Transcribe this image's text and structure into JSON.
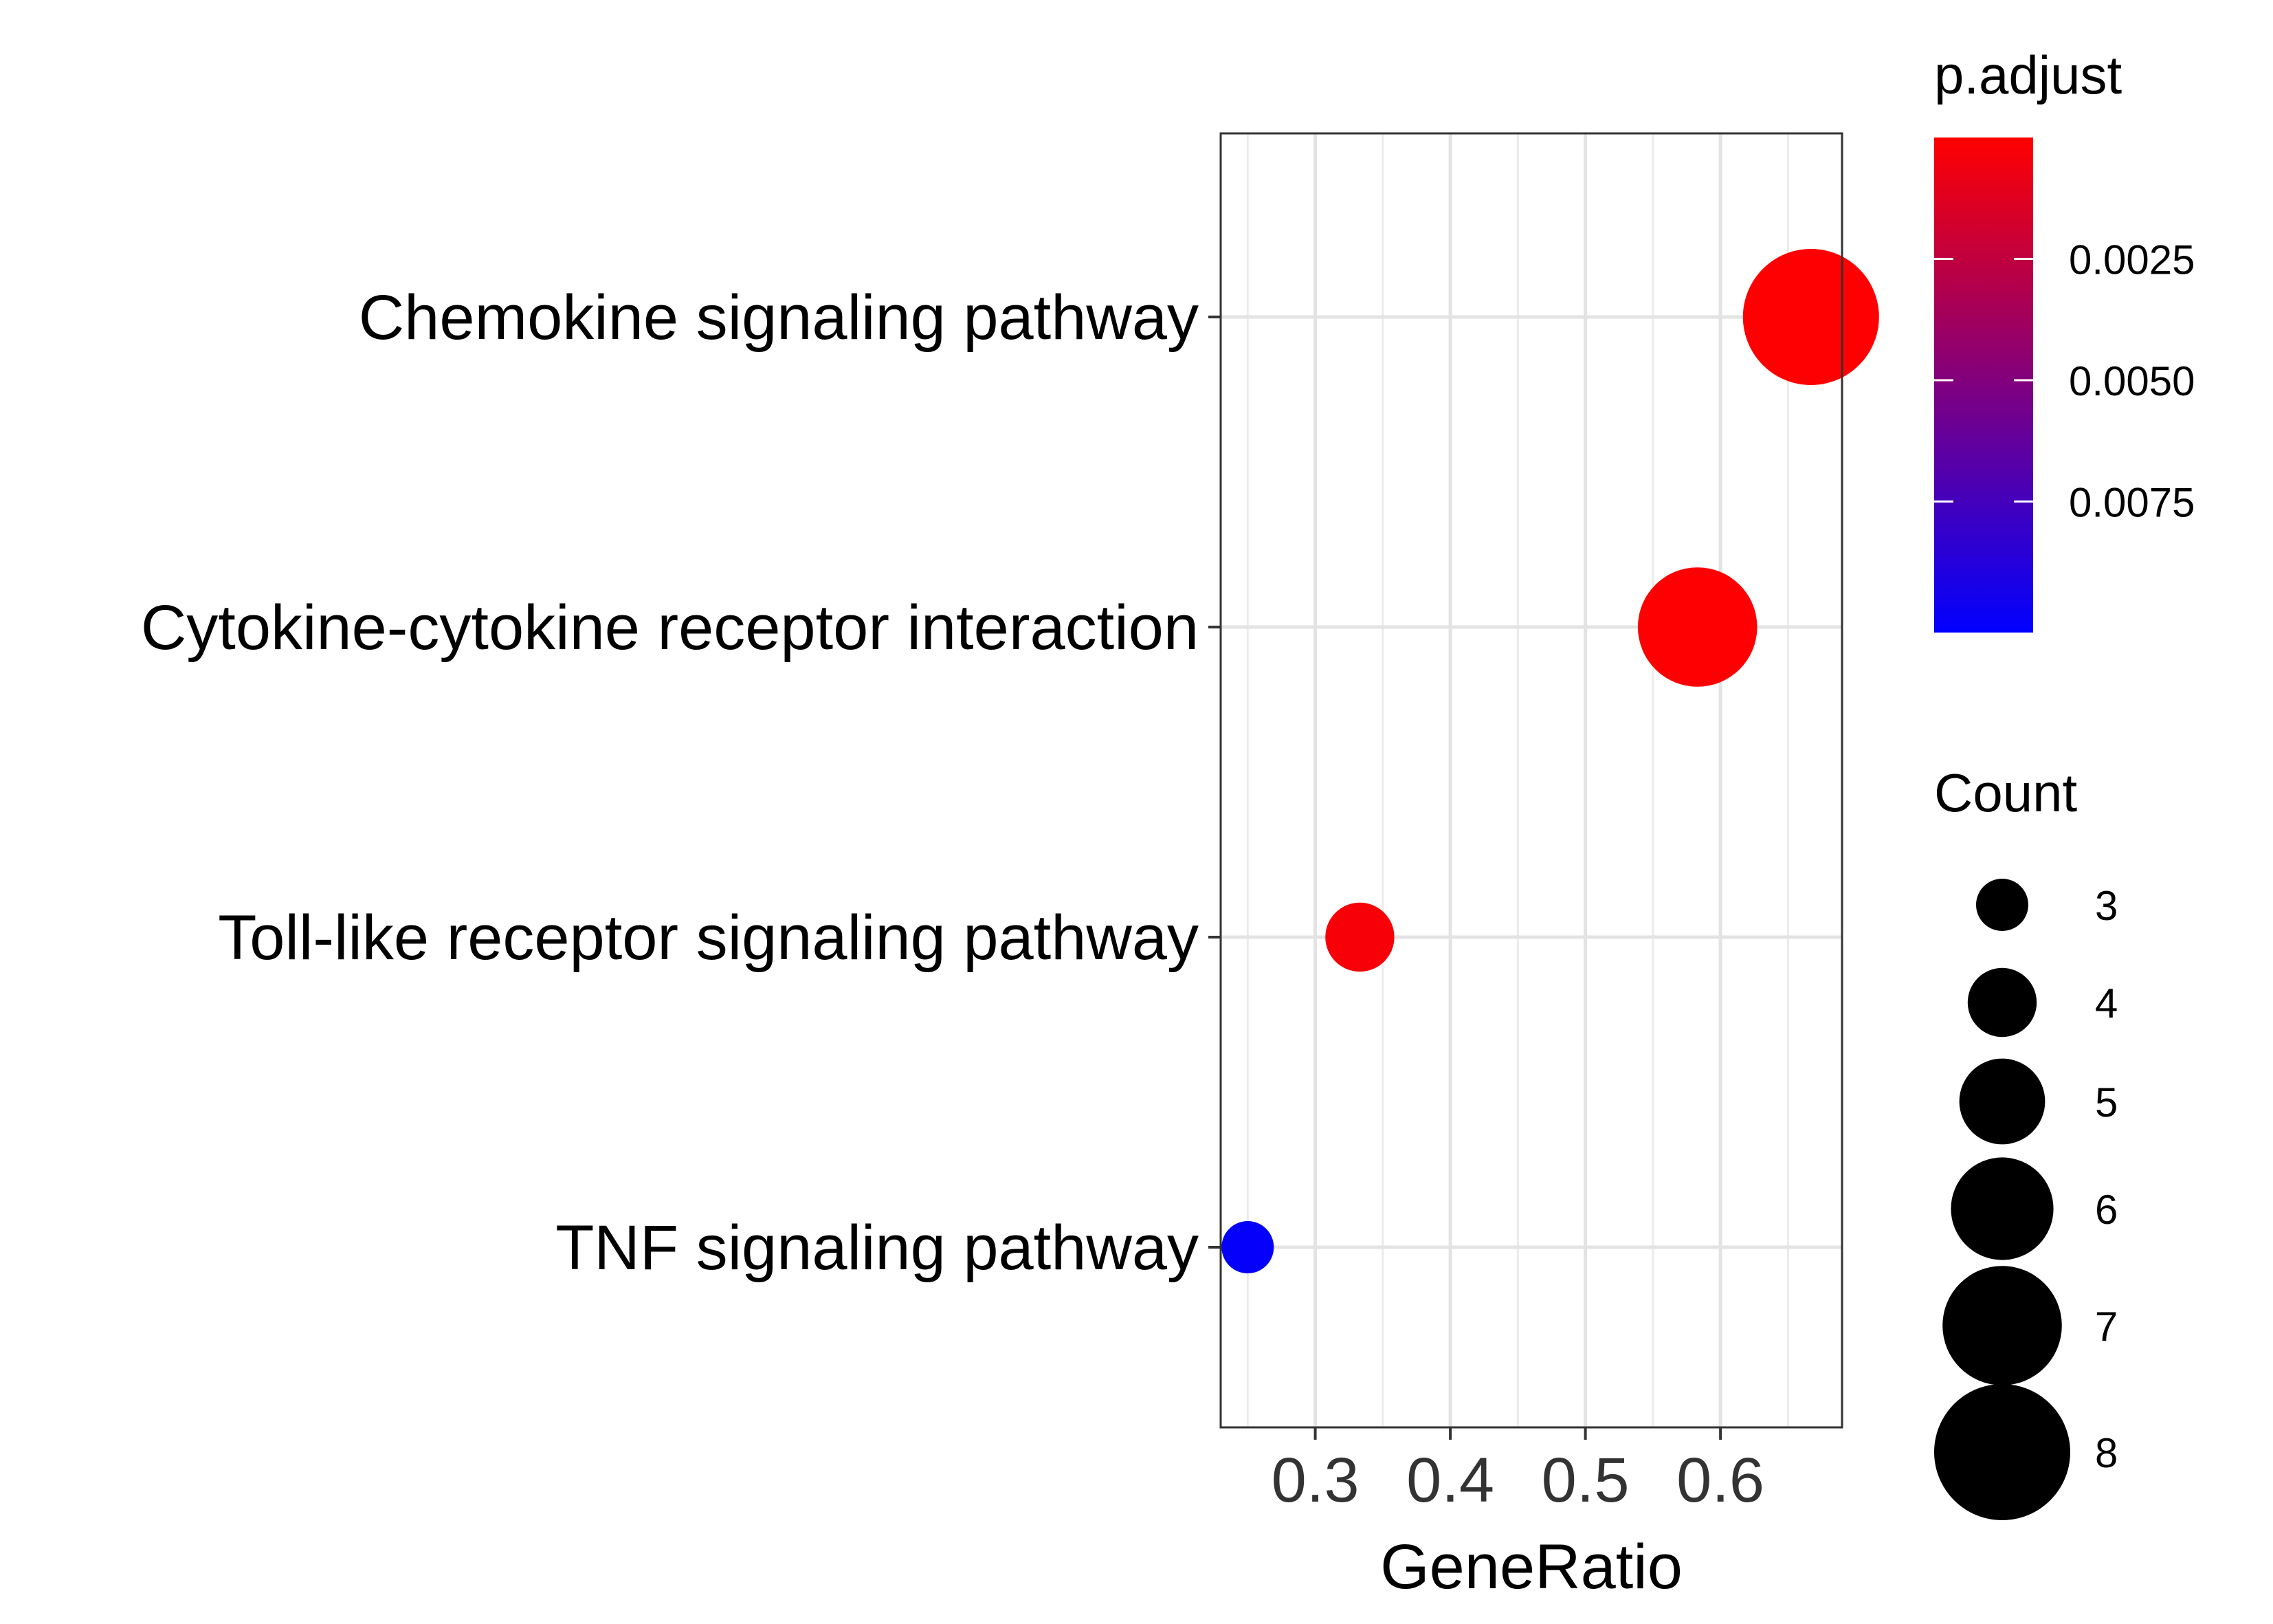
{
  "chart_data": {
    "type": "scatter",
    "xlabel": "GeneRatio",
    "ylabel": "",
    "title": "",
    "xlim": [
      0.23,
      0.69
    ],
    "x_ticks": [
      "0.3",
      "0.4",
      "0.5",
      "0.6"
    ],
    "x_tick_values": [
      0.3,
      0.4,
      0.5,
      0.6
    ],
    "categories": [
      "Chemokine signaling pathway",
      "Cytokine-cytokine receptor interaction",
      "Toll-like receptor signaling pathway",
      "TNF signaling pathway"
    ],
    "points": [
      {
        "category": "Chemokine signaling pathway",
        "x": 0.667,
        "count": 8,
        "p_adjust": 3e-05
      },
      {
        "category": "Cytokine-cytokine receptor interaction",
        "x": 0.583,
        "count": 7,
        "p_adjust": 6e-05
      },
      {
        "category": "Toll-like receptor signaling pathway",
        "x": 0.333,
        "count": 4,
        "p_adjust": 0.0003
      },
      {
        "category": "TNF signaling pathway",
        "x": 0.25,
        "count": 3,
        "p_adjust": 0.01
      }
    ],
    "color_legend": {
      "title": "p.adjust",
      "range": [
        0.0,
        0.0102
      ],
      "low_color": "#ff0000",
      "high_color": "#0000ff",
      "tick_labels": [
        "0.0025",
        "0.0050",
        "0.0075"
      ],
      "tick_values": [
        0.0025,
        0.005,
        0.0075
      ]
    },
    "size_legend": {
      "title": "Count",
      "values": [
        "3",
        "4",
        "5",
        "6",
        "7",
        "8"
      ]
    },
    "grid": true,
    "legend_position": "right"
  }
}
